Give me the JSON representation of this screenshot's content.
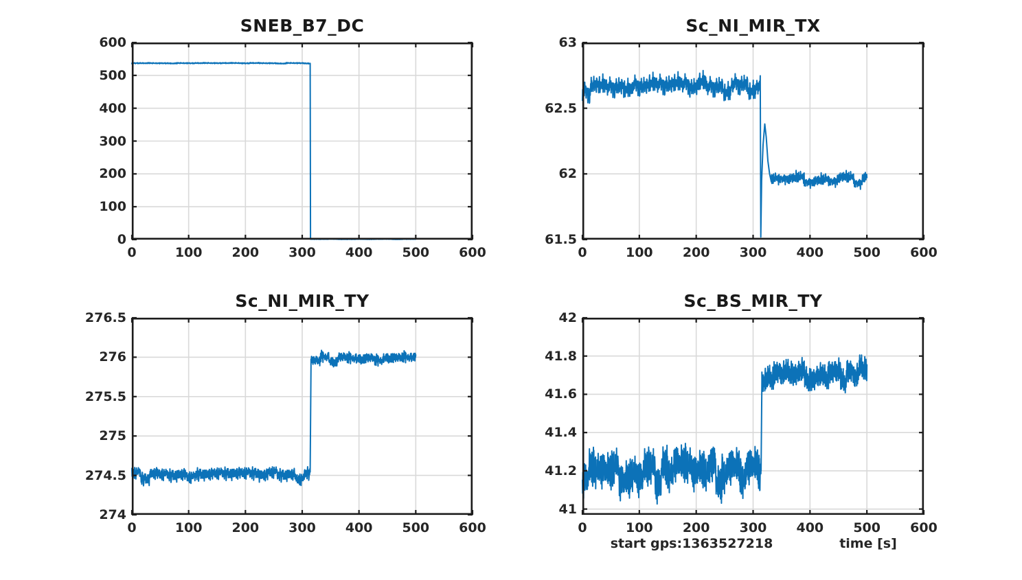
{
  "style": {
    "line_color": "#0c72b8",
    "grid_color": "#d9d9d9",
    "axis_color": "#1c1c1c",
    "text_color": "#262626",
    "background": "#ffffff"
  },
  "noise_template": [
    0.12,
    -0.56,
    0.83,
    -0.22,
    0.45,
    -0.91,
    0.3,
    0.66,
    -0.38,
    0.08,
    0.95,
    -0.72,
    0.18,
    -0.05,
    0.61,
    -0.44,
    0.27,
    -0.83,
    0.52,
    0.02,
    -0.29,
    0.74,
    -0.61,
    0.39,
    -0.12,
    0.88,
    -0.5,
    0.21,
    -0.97,
    0.43,
    0.07,
    -0.34,
    0.69,
    -0.15,
    0.58,
    -0.78,
    0.25,
    0.92,
    -0.41,
    0.16,
    -0.64,
    0.35,
    -0.09,
    0.81,
    -0.27,
    0.49,
    -0.86,
    0.13,
    0.71,
    -0.53,
    0.04,
    0.62,
    -0.31,
    0.9,
    -0.18,
    0.4,
    -0.75,
    0.23,
    -0.02,
    0.55,
    -0.68,
    0.31,
    0.85,
    -0.47,
    0.1,
    -0.93,
    0.37,
    0.64,
    -0.25,
    0.01,
    -0.59,
    0.77,
    -0.36,
    0.2,
    0.96,
    -0.14,
    0.46,
    -0.82,
    0.29,
    0.06,
    -0.49,
    0.67,
    -0.21,
    0.41,
    -0.89,
    0.15,
    0.73,
    -0.4,
    0.09,
    0.57,
    -0.66,
    0.33,
    -0.07,
    0.87,
    -0.26,
    0.51,
    -0.79
  ],
  "chart_data": [
    {
      "type": "line",
      "title": "SNEB_B7_DC",
      "xlim": [
        0,
        600
      ],
      "ylim": [
        0,
        600
      ],
      "xticks": [
        "0",
        "100",
        "200",
        "300",
        "400",
        "500",
        "600"
      ],
      "yticks": [
        "0",
        "100",
        "200",
        "300",
        "400",
        "500",
        "600"
      ],
      "grid": true,
      "data_x_end": 500,
      "step_time": 315,
      "series": [
        {
          "name": "SNEB_B7_DC",
          "segments": [
            {
              "kind": "noisy",
              "x0": 0,
              "x1": 314,
              "level": 537,
              "amp": 2.2,
              "rate": 2,
              "salt": 5
            },
            {
              "kind": "path",
              "points": [
                [
                  314,
                  536.5
                ],
                [
                  314.6,
                  1.5
                ]
              ]
            },
            {
              "kind": "noisy",
              "x0": 314.6,
              "x1": 500,
              "level": 1.2,
              "amp": 1.0,
              "rate": 2,
              "salt": 11
            }
          ]
        }
      ]
    },
    {
      "type": "line",
      "title": "Sc_NI_MIR_TX",
      "xlim": [
        0,
        600
      ],
      "ylim": [
        61.5,
        63
      ],
      "xticks": [
        "0",
        "100",
        "200",
        "300",
        "400",
        "500",
        "600"
      ],
      "yticks": [
        "61.5",
        "62",
        "62.5",
        "63"
      ],
      "grid": true,
      "data_x_end": 500,
      "step_time": 315,
      "series": [
        {
          "name": "Sc_NI_MIR_TX",
          "segments": [
            {
              "kind": "noisy",
              "x0": 0,
              "x1": 312.5,
              "level": 62.66,
              "amp": 0.12,
              "rate": 2.2,
              "salt": 17
            },
            {
              "kind": "path",
              "points": [
                [
                  312.5,
                  62.72
                ],
                [
                  313.5,
                  61.52
                ],
                [
                  315,
                  61.95
                ],
                [
                  317.5,
                  62.22
                ],
                [
                  320.5,
                  62.38
                ],
                [
                  323,
                  62.28
                ],
                [
                  326,
                  62.1
                ],
                [
                  329,
                  62.0
                ],
                [
                  332,
                  61.94
                ]
              ]
            },
            {
              "kind": "noisy",
              "x0": 332,
              "x1": 500,
              "level": 61.95,
              "amp": 0.07,
              "rate": 2.2,
              "salt": 23
            }
          ]
        }
      ]
    },
    {
      "type": "line",
      "title": "Sc_NI_MIR_TY",
      "xlim": [
        0,
        600
      ],
      "ylim": [
        274,
        276.5
      ],
      "xticks": [
        "0",
        "100",
        "200",
        "300",
        "400",
        "500",
        "600"
      ],
      "yticks": [
        "274",
        "274.5",
        "275",
        "275.5",
        "276",
        "276.5"
      ],
      "grid": true,
      "data_x_end": 500,
      "step_time": 315,
      "series": [
        {
          "name": "Sc_NI_MIR_TY",
          "segments": [
            {
              "kind": "noisy",
              "x0": 0,
              "x1": 314,
              "level": 274.5,
              "amp": 0.13,
              "rate": 2,
              "salt": 29
            },
            {
              "kind": "path",
              "points": [
                [
                  314,
                  274.57
                ],
                [
                  315.5,
                  275.88
                ]
              ]
            },
            {
              "kind": "noisy",
              "x0": 315.5,
              "x1": 500,
              "level": 275.98,
              "amp": 0.11,
              "rate": 2,
              "salt": 41
            }
          ]
        }
      ]
    },
    {
      "type": "line",
      "title": "Sc_BS_MIR_TY",
      "xlim": [
        0,
        600
      ],
      "ylim": [
        40.97,
        42
      ],
      "xticks": [
        "0",
        "100",
        "200",
        "300",
        "400",
        "500",
        "600"
      ],
      "yticks": [
        "41",
        "41.2",
        "41.4",
        "41.6",
        "41.8",
        "42"
      ],
      "grid": true,
      "data_x_end": 500,
      "step_time": 315,
      "xlabel_parts": {
        "left": "start gps:1363527218",
        "right": "time [s]"
      },
      "series": [
        {
          "name": "Sc_BS_MIR_TY",
          "segments": [
            {
              "kind": "noisy",
              "x0": 0,
              "x1": 314,
              "level": 41.17,
              "amp": 0.16,
              "rate": 3,
              "salt": 47
            },
            {
              "kind": "path",
              "points": [
                [
                  314,
                  41.2
                ],
                [
                  315.5,
                  41.67
                ]
              ]
            },
            {
              "kind": "noisy",
              "x0": 315.5,
              "x1": 500,
              "level": 41.69,
              "amp": 0.1,
              "rate": 3,
              "salt": 59
            }
          ]
        }
      ]
    }
  ]
}
